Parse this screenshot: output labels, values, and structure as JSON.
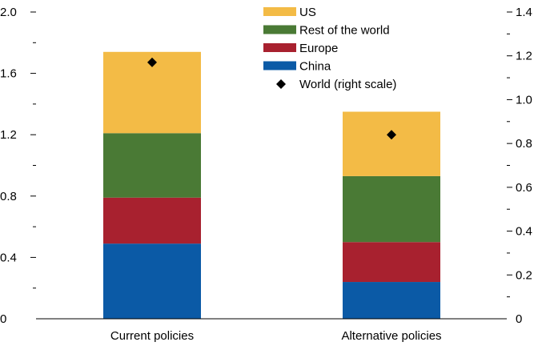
{
  "chart_data": {
    "type": "bar",
    "stacked": true,
    "categories": [
      "Current policies",
      "Alternative policies"
    ],
    "series": [
      {
        "name": "China",
        "color": "#0b5aa6",
        "values": [
          0.49,
          0.24
        ]
      },
      {
        "name": "Europe",
        "color": "#a8212f",
        "values": [
          0.3,
          0.26
        ]
      },
      {
        "name": "Rest of the world",
        "color": "#4a7a35",
        "values": [
          0.42,
          0.43
        ]
      },
      {
        "name": "US",
        "color": "#f3bb46",
        "values": [
          0.53,
          0.42
        ]
      }
    ],
    "overlay_series": {
      "name": "World (right scale)",
      "marker": "diamond",
      "color": "#000000",
      "values": [
        1.17,
        0.84
      ]
    },
    "left_axis": {
      "min": 0,
      "max": 2.0,
      "major_ticks": [
        0,
        0.4,
        0.8,
        1.2,
        1.6,
        2.0
      ],
      "major_labels": [
        "0",
        "0.4",
        "0.8",
        "1.2",
        "1.6",
        "2.0"
      ],
      "minor_ticks": [
        0.2,
        0.6,
        1.0,
        1.4,
        1.8
      ]
    },
    "right_axis": {
      "min": 0,
      "max": 1.4,
      "major_ticks": [
        0,
        0.2,
        0.4,
        0.6,
        0.8,
        1.0,
        1.2,
        1.4
      ],
      "major_labels": [
        "0",
        "0.2",
        "0.4",
        "0.6",
        "0.8",
        "1.0",
        "1.2",
        "1.4"
      ],
      "minor_ticks": [
        0.1,
        0.3,
        0.5,
        0.7,
        0.9,
        1.1,
        1.3
      ]
    },
    "legend": {
      "placement": "top-center",
      "entries": [
        "US",
        "Rest of the world",
        "Europe",
        "China",
        "World (right scale)"
      ]
    },
    "grid": false
  }
}
